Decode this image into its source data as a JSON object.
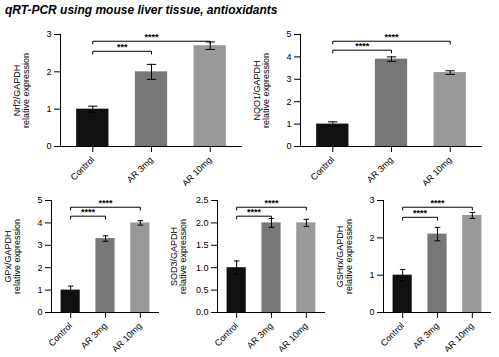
{
  "title": "qRT-PCR using mouse liver tissue, antioxidants",
  "chart_data": [
    {
      "type": "bar",
      "ylabel": "Nrf2/GAPDH\nrelative expression",
      "categories": [
        "Control",
        "AR 3mg",
        "AR 10mg"
      ],
      "values": [
        1.0,
        2.0,
        2.7
      ],
      "errors": [
        0.08,
        0.2,
        0.1
      ],
      "colors": [
        "#111111",
        "#777777",
        "#999999"
      ],
      "ylim": [
        0,
        3
      ],
      "yticks": [
        0,
        1,
        2,
        3
      ],
      "annotations": [
        {
          "x1": "Control",
          "x2": "AR 3mg",
          "y": 2.55,
          "label": "***"
        },
        {
          "x1": "Control",
          "x2": "AR 10mg",
          "y": 2.82,
          "label": "****"
        }
      ]
    },
    {
      "type": "bar",
      "ylabel": "NQO1/GAPDH\nrelative expression",
      "categories": [
        "Control",
        "AR 3mg",
        "AR 10mg"
      ],
      "values": [
        1.0,
        3.9,
        3.3
      ],
      "errors": [
        0.1,
        0.1,
        0.08
      ],
      "colors": [
        "#111111",
        "#777777",
        "#999999"
      ],
      "ylim": [
        0,
        5
      ],
      "yticks": [
        0,
        1,
        2,
        3,
        4,
        5
      ],
      "annotations": [
        {
          "x1": "Control",
          "x2": "AR 3mg",
          "y": 4.3,
          "label": "****"
        },
        {
          "x1": "Control",
          "x2": "AR 10mg",
          "y": 4.7,
          "label": "****"
        }
      ]
    },
    {
      "type": "bar",
      "ylabel": "GPx/GAPDH\nrelative expression",
      "categories": [
        "Control",
        "AR 3mg",
        "AR 10mg"
      ],
      "values": [
        1.0,
        3.3,
        4.0
      ],
      "errors": [
        0.18,
        0.12,
        0.1
      ],
      "colors": [
        "#111111",
        "#777777",
        "#999999"
      ],
      "ylim": [
        0,
        5
      ],
      "yticks": [
        0,
        1,
        2,
        3,
        4,
        5
      ],
      "annotations": [
        {
          "x1": "Control",
          "x2": "AR 3mg",
          "y": 4.3,
          "label": "****"
        },
        {
          "x1": "Control",
          "x2": "AR 10mg",
          "y": 4.7,
          "label": "****"
        }
      ]
    },
    {
      "type": "bar",
      "ylabel": "SOD3/GAPDH\nrelative expression",
      "categories": [
        "Control",
        "AR 3mg",
        "AR 10mg"
      ],
      "values": [
        1.0,
        2.0,
        2.0
      ],
      "errors": [
        0.15,
        0.1,
        0.08
      ],
      "colors": [
        "#111111",
        "#777777",
        "#999999"
      ],
      "ylim": [
        0,
        2.5
      ],
      "yticks": [
        {
          "value": 0.0,
          "label": "0.0"
        },
        0.5,
        {
          "value": 1.0,
          "label": "1.0"
        },
        1.5,
        {
          "value": 2.0,
          "label": "2.0"
        },
        2.5
      ],
      "annotations": [
        {
          "x1": "Control",
          "x2": "AR 3mg",
          "y": 2.15,
          "label": "****"
        },
        {
          "x1": "Control",
          "x2": "AR 10mg",
          "y": 2.35,
          "label": "****"
        }
      ]
    },
    {
      "type": "bar",
      "ylabel": "GSHrx/GAPDH\nrelative expression",
      "categories": [
        "Control",
        "AR 3mg",
        "AR 10mg"
      ],
      "values": [
        1.0,
        2.1,
        2.6
      ],
      "errors": [
        0.15,
        0.18,
        0.08
      ],
      "colors": [
        "#111111",
        "#777777",
        "#999999"
      ],
      "ylim": [
        0,
        3
      ],
      "yticks": [
        0,
        1,
        2,
        3
      ],
      "annotations": [
        {
          "x1": "Control",
          "x2": "AR 10mg",
          "y": 2.82,
          "label": "****"
        },
        {
          "x1": "Control",
          "x2": "AR 3mg",
          "y": 2.55,
          "label": "****"
        }
      ]
    }
  ]
}
